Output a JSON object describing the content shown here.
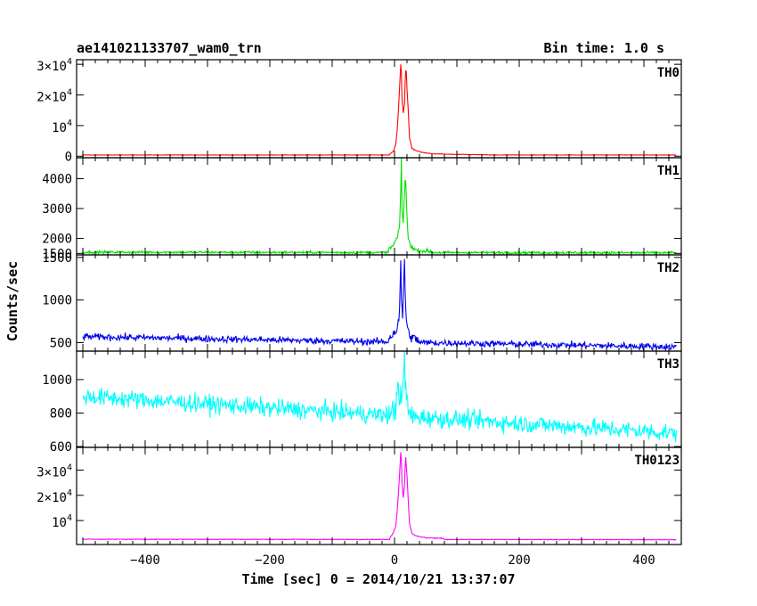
{
  "header": {
    "title": "ae141021133707_wam0_trn",
    "bin_time": "Bin time: 1.0 s"
  },
  "chart_data": {
    "type": "line",
    "xlabel": "Time [sec] 0 = 2014/10/21 13:37:07",
    "ylabel": "Counts/sec",
    "xlim": [
      -510,
      460
    ],
    "x_ticks": [
      -400,
      -200,
      0,
      200,
      400
    ],
    "x_tick_labels": [
      "−400",
      "−200",
      "0",
      "200",
      "400"
    ],
    "panels": [
      {
        "name": "TH0",
        "color": "#ff0000",
        "ylim": [
          -500,
          31500
        ],
        "y_ticks": [
          0,
          10000,
          20000,
          30000
        ],
        "y_tick_labels": [
          {
            "text": "0"
          },
          {
            "text": "10",
            "sup": "4"
          },
          {
            "text": "2×10",
            "sup": "4"
          },
          {
            "text": "3×10",
            "sup": "4"
          }
        ],
        "baseline_start": 400,
        "baseline_end": 400,
        "noise": 40,
        "burst_points": [
          [
            -8,
            600
          ],
          [
            -2,
            1600
          ],
          [
            2,
            4000
          ],
          [
            4,
            8000
          ],
          [
            6,
            14000
          ],
          [
            8,
            22000
          ],
          [
            10,
            30000
          ],
          [
            11,
            27000
          ],
          [
            12,
            19000
          ],
          [
            14,
            14000
          ],
          [
            16,
            17000
          ],
          [
            17,
            24000
          ],
          [
            18,
            28000
          ],
          [
            19,
            27500
          ],
          [
            20,
            22000
          ],
          [
            22,
            15000
          ],
          [
            24,
            6000
          ],
          [
            28,
            2500
          ],
          [
            35,
            1800
          ],
          [
            45,
            1200
          ],
          [
            60,
            800
          ],
          [
            90,
            600
          ],
          [
            150,
            450
          ]
        ]
      },
      {
        "name": "TH1",
        "color": "#00e000",
        "ylim": [
          1450,
          4700
        ],
        "y_ticks": [
          1500,
          2000,
          3000,
          4000
        ],
        "y_tick_labels": [
          {
            "text": "1500"
          },
          {
            "text": "2000"
          },
          {
            "text": "3000"
          },
          {
            "text": "4000"
          }
        ],
        "baseline_start": 1540,
        "baseline_end": 1520,
        "noise": 30,
        "burst_points": [
          [
            -10,
            1650
          ],
          [
            -2,
            1750
          ],
          [
            2,
            1950
          ],
          [
            5,
            2050
          ],
          [
            8,
            2400
          ],
          [
            10,
            3600
          ],
          [
            11,
            4650
          ],
          [
            12,
            3000
          ],
          [
            14,
            2500
          ],
          [
            16,
            3500
          ],
          [
            17,
            4000
          ],
          [
            18,
            3900
          ],
          [
            20,
            2700
          ],
          [
            22,
            2000
          ],
          [
            26,
            1750
          ],
          [
            35,
            1600
          ],
          [
            60,
            1560
          ]
        ]
      },
      {
        "name": "TH2",
        "color": "#0000ee",
        "ylim": [
          400,
          1530
        ],
        "y_ticks": [
          500,
          1000,
          1500
        ],
        "y_tick_labels": [
          {
            "text": "500"
          },
          {
            "text": "1000"
          },
          {
            "text": "1500"
          }
        ],
        "baseline_start": 570,
        "baseline_end": 450,
        "noise": 28,
        "burst_points": [
          [
            -10,
            560
          ],
          [
            -2,
            600
          ],
          [
            3,
            650
          ],
          [
            6,
            720
          ],
          [
            8,
            850
          ],
          [
            10,
            1440
          ],
          [
            11,
            1000
          ],
          [
            13,
            800
          ],
          [
            15,
            1300
          ],
          [
            16,
            1480
          ],
          [
            17,
            1100
          ],
          [
            19,
            750
          ],
          [
            22,
            620
          ],
          [
            28,
            560
          ],
          [
            40,
            520
          ]
        ]
      },
      {
        "name": "TH3",
        "color": "#00ffff",
        "ylim": [
          595,
          1170
        ],
        "y_ticks": [
          600,
          800,
          1000
        ],
        "y_tick_labels": [
          {
            "text": "600"
          },
          {
            "text": "800"
          },
          {
            "text": "1000"
          }
        ],
        "baseline_start": 900,
        "baseline_end": 680,
        "noise": 38,
        "burst_points": [
          [
            -10,
            780
          ],
          [
            -2,
            800
          ],
          [
            2,
            840
          ],
          [
            4,
            960
          ],
          [
            6,
            1000
          ],
          [
            8,
            880
          ],
          [
            12,
            860
          ],
          [
            15,
            1030
          ],
          [
            16,
            1160
          ],
          [
            17,
            1030
          ],
          [
            19,
            880
          ],
          [
            24,
            790
          ],
          [
            30,
            760
          ]
        ]
      },
      {
        "name": "TH0123",
        "color": "#ff00ff",
        "ylim": [
          500,
          39000
        ],
        "y_ticks": [
          10000,
          20000,
          30000
        ],
        "y_tick_labels": [
          {
            "text": "10",
            "sup": "4"
          },
          {
            "text": "2×10",
            "sup": "4"
          },
          {
            "text": "3×10",
            "sup": "4"
          }
        ],
        "baseline_start": 2600,
        "baseline_end": 2400,
        "noise": 90,
        "burst_points": [
          [
            -8,
            3200
          ],
          [
            -2,
            5000
          ],
          [
            2,
            8000
          ],
          [
            4,
            13000
          ],
          [
            6,
            20000
          ],
          [
            8,
            28000
          ],
          [
            10,
            37000
          ],
          [
            11,
            34000
          ],
          [
            12,
            25000
          ],
          [
            14,
            19000
          ],
          [
            16,
            24000
          ],
          [
            17,
            31000
          ],
          [
            18,
            35000
          ],
          [
            20,
            28000
          ],
          [
            22,
            18000
          ],
          [
            24,
            9000
          ],
          [
            28,
            5000
          ],
          [
            35,
            3800
          ],
          [
            50,
            3200
          ],
          [
            80,
            2900
          ]
        ]
      }
    ]
  }
}
